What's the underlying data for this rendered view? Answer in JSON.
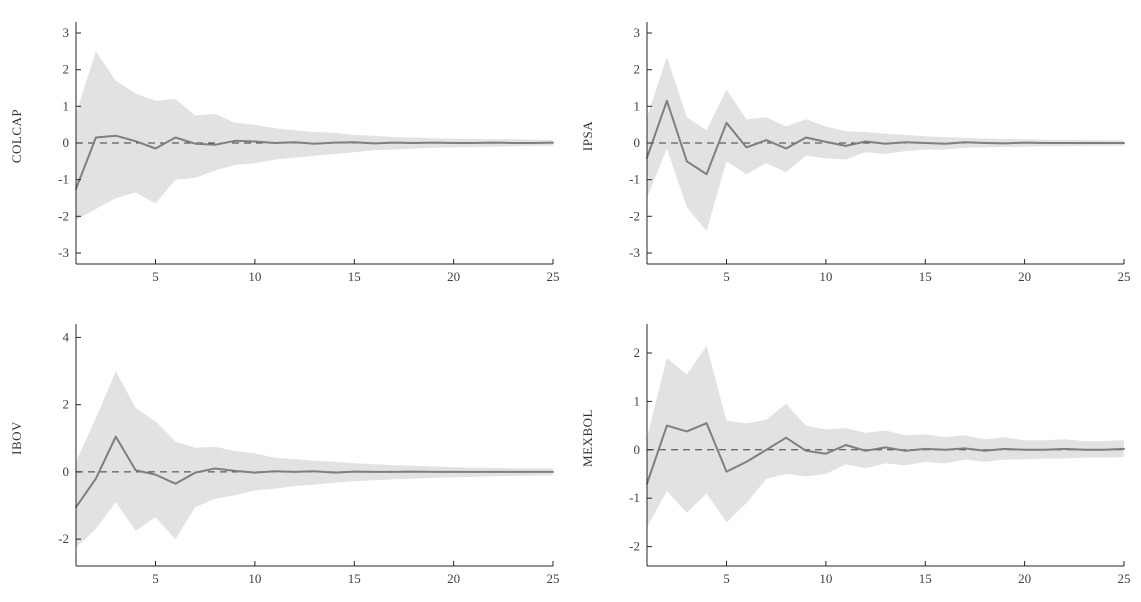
{
  "figure": {
    "background": "#ffffff",
    "layout": "2x2 impulse-response panels"
  },
  "style": {
    "line_color": "#7f7f7f",
    "band_color": "#e2e2e2",
    "zero_line_color": "#3f3f3f",
    "axis_color": "#262626",
    "tick_color": "#404040"
  },
  "chart_data": [
    {
      "type": "line",
      "panel": "top-left",
      "title": "",
      "xlabel": "",
      "ylabel": "COLCAP",
      "xlim": [
        1,
        25
      ],
      "ylim": [
        -3.3,
        3.3
      ],
      "xticks": [
        5,
        10,
        15,
        20,
        25
      ],
      "yticks": [
        -3,
        -2,
        -1,
        0,
        1,
        2,
        3
      ],
      "zero_line": true,
      "grid": false,
      "legend": false,
      "x": [
        1,
        2,
        3,
        4,
        5,
        6,
        7,
        8,
        9,
        10,
        11,
        12,
        13,
        14,
        15,
        16,
        17,
        18,
        19,
        20,
        21,
        22,
        23,
        24,
        25
      ],
      "series": [
        {
          "name": "response",
          "values": [
            -1.25,
            0.15,
            0.2,
            0.05,
            -0.15,
            0.15,
            -0.02,
            -0.05,
            0.06,
            0.04,
            0.0,
            0.02,
            -0.02,
            0.01,
            0.02,
            -0.01,
            0.01,
            0.0,
            0.01,
            0.0,
            0.0,
            0.01,
            0.0,
            0.0,
            0.01
          ]
        },
        {
          "name": "upper_band",
          "values": [
            0.8,
            2.5,
            1.7,
            1.35,
            1.15,
            1.2,
            0.75,
            0.8,
            0.55,
            0.5,
            0.4,
            0.35,
            0.3,
            0.28,
            0.22,
            0.2,
            0.16,
            0.15,
            0.13,
            0.12,
            0.11,
            0.1,
            0.1,
            0.09,
            0.08
          ]
        },
        {
          "name": "lower_band",
          "values": [
            -2.1,
            -1.8,
            -1.5,
            -1.35,
            -1.65,
            -1.0,
            -0.95,
            -0.75,
            -0.6,
            -0.55,
            -0.45,
            -0.4,
            -0.35,
            -0.3,
            -0.25,
            -0.2,
            -0.18,
            -0.15,
            -0.13,
            -0.12,
            -0.11,
            -0.1,
            -0.09,
            -0.08,
            -0.08
          ]
        }
      ]
    },
    {
      "type": "line",
      "panel": "top-right",
      "title": "",
      "xlabel": "",
      "ylabel": "IPSA",
      "xlim": [
        1,
        25
      ],
      "ylim": [
        -3.3,
        3.3
      ],
      "xticks": [
        5,
        10,
        15,
        20,
        25
      ],
      "yticks": [
        -3,
        -2,
        -1,
        0,
        1,
        2,
        3
      ],
      "zero_line": true,
      "grid": false,
      "legend": false,
      "x": [
        1,
        2,
        3,
        4,
        5,
        6,
        7,
        8,
        9,
        10,
        11,
        12,
        13,
        14,
        15,
        16,
        17,
        18,
        19,
        20,
        21,
        22,
        23,
        24,
        25
      ],
      "series": [
        {
          "name": "response",
          "values": [
            -0.4,
            1.15,
            -0.5,
            -0.85,
            0.55,
            -0.12,
            0.08,
            -0.15,
            0.15,
            0.03,
            -0.08,
            0.04,
            -0.02,
            0.02,
            0.0,
            -0.02,
            0.02,
            0.0,
            -0.01,
            0.01,
            0.0,
            0.0,
            0.0,
            0.0,
            0.0
          ]
        },
        {
          "name": "upper_band",
          "values": [
            0.7,
            2.35,
            0.7,
            0.35,
            1.45,
            0.65,
            0.7,
            0.45,
            0.65,
            0.45,
            0.32,
            0.3,
            0.25,
            0.22,
            0.18,
            0.16,
            0.14,
            0.12,
            0.11,
            0.1,
            0.09,
            0.09,
            0.08,
            0.08,
            0.07
          ]
        },
        {
          "name": "lower_band",
          "values": [
            -1.5,
            -0.15,
            -1.75,
            -2.4,
            -0.5,
            -0.85,
            -0.55,
            -0.8,
            -0.35,
            -0.42,
            -0.45,
            -0.25,
            -0.3,
            -0.22,
            -0.18,
            -0.18,
            -0.13,
            -0.12,
            -0.11,
            -0.1,
            -0.09,
            -0.09,
            -0.08,
            -0.08,
            -0.07
          ]
        }
      ]
    },
    {
      "type": "line",
      "panel": "bottom-left",
      "title": "",
      "xlabel": "",
      "ylabel": "IBOV",
      "xlim": [
        1,
        25
      ],
      "ylim": [
        -2.8,
        4.4
      ],
      "xticks": [
        5,
        10,
        15,
        20,
        25
      ],
      "yticks": [
        -2,
        0,
        2,
        4
      ],
      "zero_line": true,
      "grid": false,
      "legend": false,
      "x": [
        1,
        2,
        3,
        4,
        5,
        6,
        7,
        8,
        9,
        10,
        11,
        12,
        13,
        14,
        15,
        16,
        17,
        18,
        19,
        20,
        21,
        22,
        23,
        24,
        25
      ],
      "series": [
        {
          "name": "response",
          "values": [
            -1.05,
            -0.2,
            1.05,
            0.05,
            -0.08,
            -0.35,
            -0.02,
            0.1,
            0.03,
            -0.02,
            0.02,
            0.0,
            0.02,
            -0.02,
            0.01,
            0.0,
            0.0,
            0.01,
            0.0,
            0.0,
            0.0,
            0.0,
            0.0,
            0.0,
            0.0
          ]
        },
        {
          "name": "upper_band",
          "values": [
            0.3,
            1.6,
            3.0,
            1.9,
            1.5,
            0.9,
            0.72,
            0.75,
            0.62,
            0.55,
            0.42,
            0.38,
            0.33,
            0.3,
            0.26,
            0.23,
            0.2,
            0.18,
            0.16,
            0.14,
            0.13,
            0.12,
            0.11,
            0.1,
            0.1
          ]
        },
        {
          "name": "lower_band",
          "values": [
            -2.25,
            -1.7,
            -0.9,
            -1.75,
            -1.35,
            -2.0,
            -1.05,
            -0.8,
            -0.7,
            -0.55,
            -0.5,
            -0.42,
            -0.38,
            -0.32,
            -0.28,
            -0.25,
            -0.22,
            -0.2,
            -0.18,
            -0.16,
            -0.15,
            -0.13,
            -0.12,
            -0.11,
            -0.1
          ]
        }
      ]
    },
    {
      "type": "line",
      "panel": "bottom-right",
      "title": "",
      "xlabel": "",
      "ylabel": "MEXBOL",
      "xlim": [
        1,
        25
      ],
      "ylim": [
        -2.4,
        2.6
      ],
      "xticks": [
        5,
        10,
        15,
        20,
        25
      ],
      "yticks": [
        -2,
        -1,
        0,
        1,
        2
      ],
      "zero_line": true,
      "grid": false,
      "legend": false,
      "x": [
        1,
        2,
        3,
        4,
        5,
        6,
        7,
        8,
        9,
        10,
        11,
        12,
        13,
        14,
        15,
        16,
        17,
        18,
        19,
        20,
        21,
        22,
        23,
        24,
        25
      ],
      "series": [
        {
          "name": "response",
          "values": [
            -0.7,
            0.5,
            0.38,
            0.55,
            -0.45,
            -0.25,
            0.0,
            0.25,
            -0.02,
            -0.08,
            0.1,
            -0.02,
            0.05,
            -0.02,
            0.02,
            0.0,
            0.03,
            -0.02,
            0.02,
            0.0,
            0.0,
            0.02,
            0.0,
            0.0,
            0.02
          ]
        },
        {
          "name": "upper_band",
          "values": [
            0.25,
            1.9,
            1.55,
            2.15,
            0.6,
            0.55,
            0.62,
            0.95,
            0.5,
            0.42,
            0.45,
            0.35,
            0.4,
            0.3,
            0.32,
            0.26,
            0.3,
            0.22,
            0.26,
            0.2,
            0.2,
            0.22,
            0.18,
            0.18,
            0.2
          ]
        },
        {
          "name": "lower_band",
          "values": [
            -1.6,
            -0.85,
            -1.3,
            -0.9,
            -1.5,
            -1.1,
            -0.6,
            -0.5,
            -0.55,
            -0.5,
            -0.3,
            -0.38,
            -0.28,
            -0.32,
            -0.25,
            -0.28,
            -0.2,
            -0.25,
            -0.2,
            -0.2,
            -0.18,
            -0.18,
            -0.16,
            -0.16,
            -0.15
          ]
        }
      ]
    }
  ]
}
